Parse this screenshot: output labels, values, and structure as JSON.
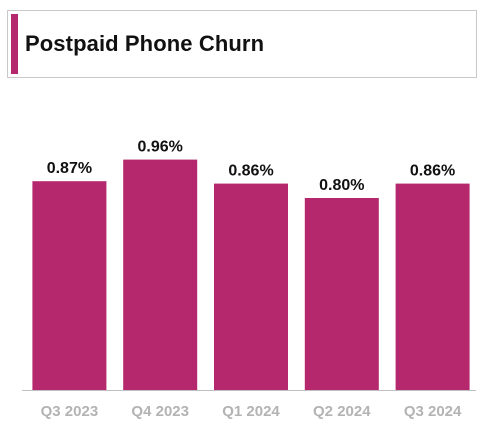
{
  "title": "Postpaid Phone Churn",
  "chart_data": {
    "type": "bar",
    "title": "Postpaid Phone Churn",
    "categories": [
      "Q3 2023",
      "Q4 2023",
      "Q1 2024",
      "Q2 2024",
      "Q3 2024"
    ],
    "values": [
      0.87,
      0.96,
      0.86,
      0.8,
      0.86
    ],
    "data_labels": [
      "0.87%",
      "0.96%",
      "0.86%",
      "0.80%",
      "0.86%"
    ],
    "unit": "%",
    "ylim": [
      0,
      1.2
    ],
    "grid": false,
    "legend": "none",
    "bar_color": "#b5286e",
    "tick_label_color": "#b3b3b3"
  }
}
